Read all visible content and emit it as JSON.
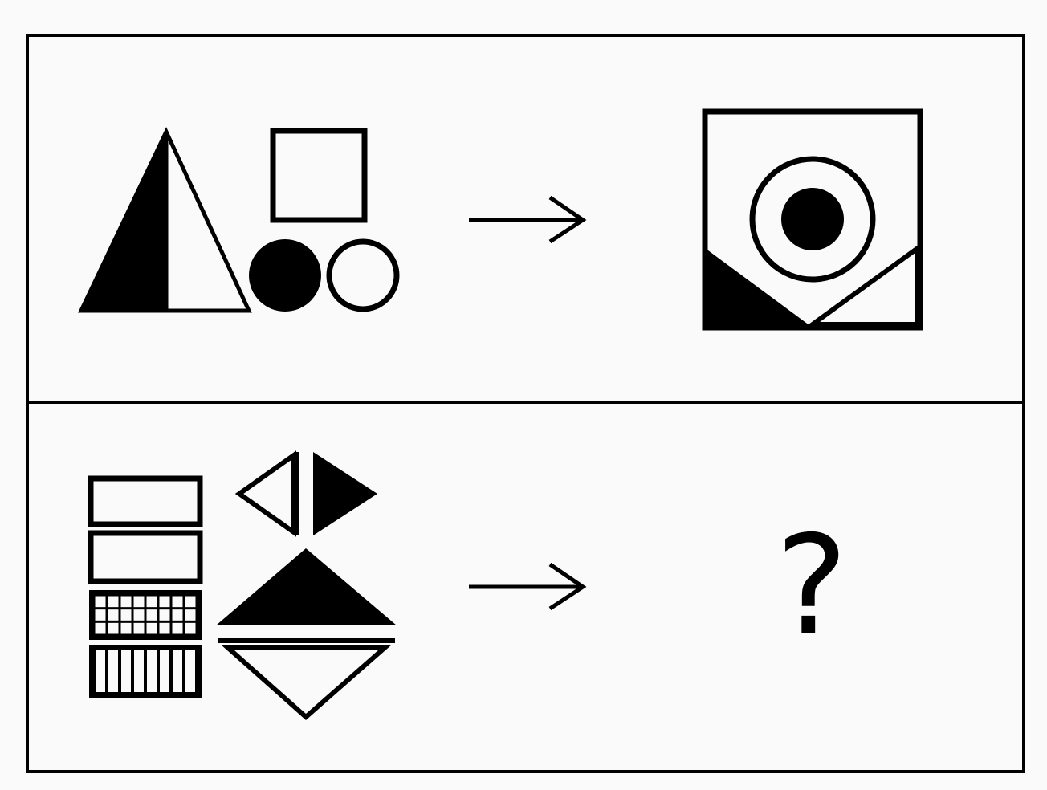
{
  "puzzle": {
    "question_mark": "?"
  },
  "colors": {
    "ink": "#000000",
    "paper": "#fafafa"
  }
}
